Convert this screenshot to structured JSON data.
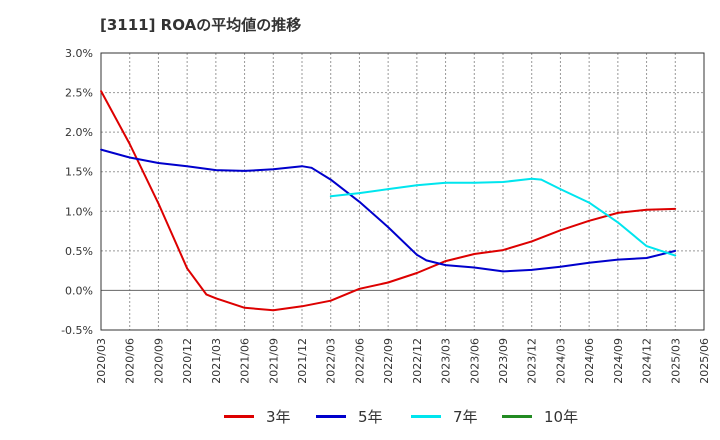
{
  "chart_data": {
    "type": "line",
    "title": "[3111]  ROAの平均値の推移",
    "ylim": [
      -0.5,
      3.0
    ],
    "y_ticks": [
      "-0.5%",
      "0.0%",
      "0.5%",
      "1.0%",
      "1.5%",
      "2.0%",
      "2.5%",
      "3.0%"
    ],
    "x_ticks": [
      "2020/03",
      "2020/06",
      "2020/09",
      "2020/12",
      "2021/03",
      "2021/06",
      "2021/09",
      "2021/12",
      "2022/03",
      "2022/06",
      "2022/09",
      "2022/12",
      "2023/03",
      "2023/06",
      "2023/09",
      "2023/12",
      "2024/03",
      "2024/06",
      "2024/09",
      "2024/12",
      "2025/03",
      "2025/06"
    ],
    "grid": true,
    "legend_position": "bottom",
    "series": [
      {
        "name": "3年",
        "color": "#dd0000",
        "points": [
          [
            "2020/03",
            2.52
          ],
          [
            "2020/06",
            1.85
          ],
          [
            "2020/09",
            1.1
          ],
          [
            "2020/12",
            0.28
          ],
          [
            "2021/02",
            -0.05
          ],
          [
            "2021/03",
            -0.1
          ],
          [
            "2021/06",
            -0.22
          ],
          [
            "2021/09",
            -0.25
          ],
          [
            "2021/12",
            -0.2
          ],
          [
            "2022/03",
            -0.13
          ],
          [
            "2022/06",
            0.02
          ],
          [
            "2022/09",
            0.1
          ],
          [
            "2022/12",
            0.22
          ],
          [
            "2023/03",
            0.37
          ],
          [
            "2023/06",
            0.46
          ],
          [
            "2023/09",
            0.51
          ],
          [
            "2023/12",
            0.62
          ],
          [
            "2024/03",
            0.76
          ],
          [
            "2024/06",
            0.88
          ],
          [
            "2024/09",
            0.98
          ],
          [
            "2024/12",
            1.02
          ],
          [
            "2025/03",
            1.03
          ]
        ]
      },
      {
        "name": "5年",
        "color": "#0000cc",
        "points": [
          [
            "2020/03",
            1.78
          ],
          [
            "2020/06",
            1.68
          ],
          [
            "2020/09",
            1.61
          ],
          [
            "2020/12",
            1.57
          ],
          [
            "2021/03",
            1.52
          ],
          [
            "2021/06",
            1.51
          ],
          [
            "2021/09",
            1.53
          ],
          [
            "2021/12",
            1.57
          ],
          [
            "2022/01",
            1.55
          ],
          [
            "2022/03",
            1.4
          ],
          [
            "2022/06",
            1.12
          ],
          [
            "2022/09",
            0.8
          ],
          [
            "2022/12",
            0.45
          ],
          [
            "2023/01",
            0.38
          ],
          [
            "2023/03",
            0.32
          ],
          [
            "2023/06",
            0.29
          ],
          [
            "2023/09",
            0.24
          ],
          [
            "2023/12",
            0.26
          ],
          [
            "2024/03",
            0.3
          ],
          [
            "2024/06",
            0.35
          ],
          [
            "2024/09",
            0.39
          ],
          [
            "2024/12",
            0.41
          ],
          [
            "2025/03",
            0.5
          ]
        ]
      },
      {
        "name": "7年",
        "color": "#00e5ee",
        "points": [
          [
            "2022/03",
            1.19
          ],
          [
            "2022/06",
            1.23
          ],
          [
            "2022/09",
            1.28
          ],
          [
            "2022/12",
            1.33
          ],
          [
            "2023/03",
            1.36
          ],
          [
            "2023/06",
            1.36
          ],
          [
            "2023/09",
            1.37
          ],
          [
            "2023/12",
            1.41
          ],
          [
            "2024/01",
            1.4
          ],
          [
            "2024/03",
            1.28
          ],
          [
            "2024/06",
            1.11
          ],
          [
            "2024/09",
            0.86
          ],
          [
            "2024/12",
            0.56
          ],
          [
            "2025/03",
            0.44
          ]
        ]
      },
      {
        "name": "10年",
        "color": "#228b22",
        "points": []
      }
    ]
  }
}
